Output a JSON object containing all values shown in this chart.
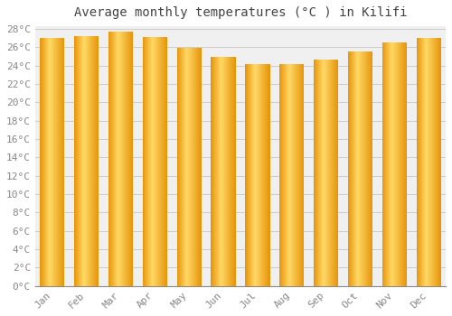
{
  "title": "Average monthly temperatures (°C ) in Kilifi",
  "months": [
    "Jan",
    "Feb",
    "Mar",
    "Apr",
    "May",
    "Jun",
    "Jul",
    "Aug",
    "Sep",
    "Oct",
    "Nov",
    "Dec"
  ],
  "values": [
    27.0,
    27.2,
    27.7,
    27.1,
    25.9,
    25.0,
    24.2,
    24.2,
    24.7,
    25.6,
    26.5,
    27.0
  ],
  "bar_color_left": "#F5A623",
  "bar_color_center": "#FFD966",
  "bar_color_right": "#E8950A",
  "background_color": "#FFFFFF",
  "plot_bg_color": "#F0F0F0",
  "grid_color": "#CCCCCC",
  "ytick_step": 2,
  "ymin": 0,
  "ymax": 28,
  "title_fontsize": 10,
  "tick_fontsize": 8,
  "title_color": "#444444",
  "tick_color": "#888888"
}
